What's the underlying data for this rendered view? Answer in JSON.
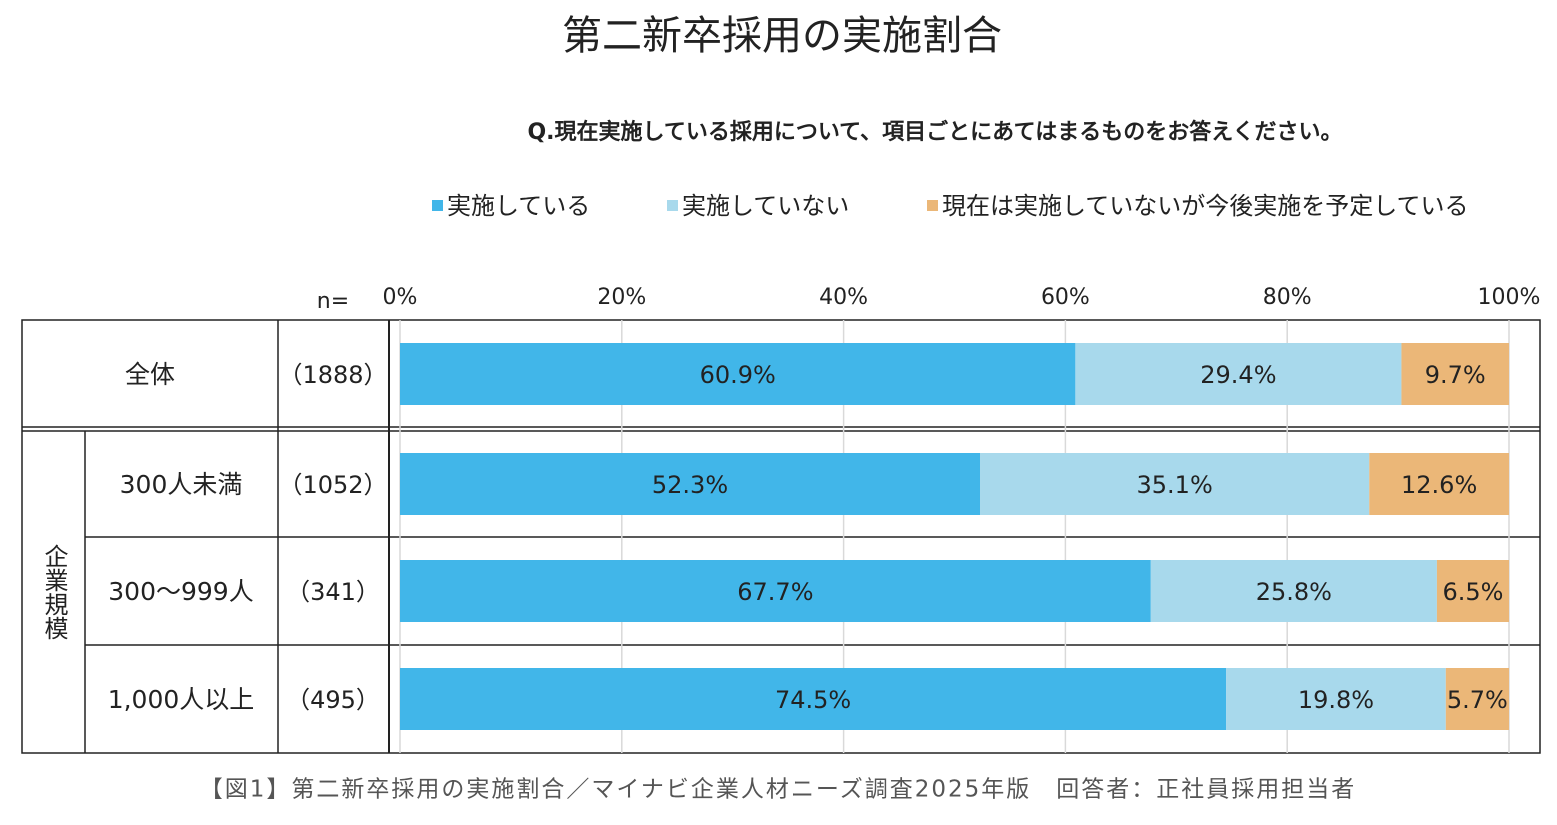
{
  "chart_data": {
    "type": "stacked-barh",
    "title": "第二新卒採用の実施割合",
    "subtitle": "Q.現在実施している採用について、項目ごとにあてはまるものをお答えください。",
    "n_header": "n=",
    "group_label": "企業規模",
    "categories": [
      "全体",
      "300人未満",
      "300～999人",
      "1,000人以上"
    ],
    "n_labels": [
      "（1888）",
      "（1052）",
      "（341）",
      "（495）"
    ],
    "series": [
      {
        "name": "実施している",
        "color": "#41b6e9",
        "values": [
          60.9,
          52.3,
          67.7,
          74.5
        ],
        "value_labels": [
          "60.9%",
          "52.3%",
          "67.7%",
          "74.5%"
        ]
      },
      {
        "name": "実施していない",
        "color": "#a8d9ec",
        "values": [
          29.4,
          35.1,
          25.8,
          19.8
        ],
        "value_labels": [
          "29.4%",
          "35.1%",
          "25.8%",
          "19.8%"
        ]
      },
      {
        "name": "現在は実施していないが今後実施を予定している",
        "color": "#ebb778",
        "values": [
          9.7,
          12.6,
          6.5,
          5.7
        ],
        "value_labels": [
          "9.7%",
          "12.6%",
          "6.5%",
          "5.7%"
        ]
      }
    ],
    "xlim": [
      0,
      100
    ],
    "xticks": [
      {
        "value": 0,
        "label": "0%"
      },
      {
        "value": 20,
        "label": "20%"
      },
      {
        "value": 40,
        "label": "40%"
      },
      {
        "value": 60,
        "label": "60%"
      },
      {
        "value": 80,
        "label": "80%"
      },
      {
        "value": 100,
        "label": "100%"
      }
    ],
    "grid": true,
    "caption": "【図1】第二新卒採用の実施割合／マイナビ企業人材ニーズ調査2025年版　回答者：正社員採用担当者"
  }
}
